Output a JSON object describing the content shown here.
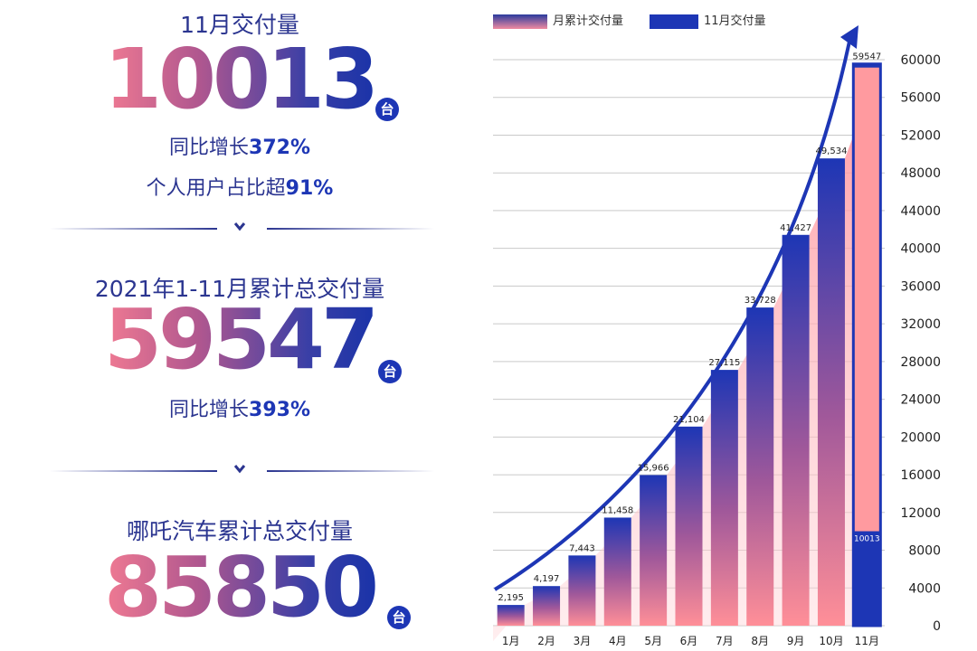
{
  "left": {
    "block1": {
      "caption": "11月交付量",
      "number": "10013",
      "unit": "台",
      "line1_a": "同比增长",
      "line1_b": "372%",
      "line2_a": "个人用户占比超",
      "line2_b": "91%"
    },
    "block2": {
      "caption": "2021年1-11月累计总交付量",
      "number": "59547",
      "unit": "台",
      "line1_a": "同比增长",
      "line1_b": "393%"
    },
    "block3": {
      "caption": "哪吒汽车累计总交付量",
      "number": "85850",
      "unit": "台"
    }
  },
  "legend": {
    "cumulative": "月累计交付量",
    "november": "11月交付量"
  },
  "colors": {
    "navy": "#1d36b5",
    "pink": "#ff9a9f",
    "text": "#2b3590"
  },
  "chart_data": {
    "type": "bar",
    "categories": [
      "1月",
      "2月",
      "3月",
      "4月",
      "5月",
      "6月",
      "7月",
      "8月",
      "9月",
      "10月",
      "11月"
    ],
    "series": [
      {
        "name": "月累计交付量",
        "values": [
          2195,
          4197,
          7443,
          11458,
          15966,
          21104,
          27115,
          33728,
          41427,
          49534,
          59547
        ]
      },
      {
        "name": "11月交付量",
        "values": [
          null,
          null,
          null,
          null,
          null,
          null,
          null,
          null,
          null,
          null,
          10013
        ]
      }
    ],
    "data_labels": [
      "2,195",
      "4,197",
      "7,443",
      "11,458",
      "15,966",
      "21,104",
      "27,115",
      "33,728",
      "41,427",
      "49,534",
      "59547"
    ],
    "november_label": "10013",
    "yticks": [
      "0",
      "4000",
      "8000",
      "12000",
      "16000",
      "20000",
      "24000",
      "28000",
      "32000",
      "36000",
      "40000",
      "44000",
      "48000",
      "52000",
      "56000",
      "60000"
    ],
    "ylim": [
      0,
      60000
    ],
    "axis_position": "right",
    "grid": true,
    "legend_position": "top-left"
  }
}
